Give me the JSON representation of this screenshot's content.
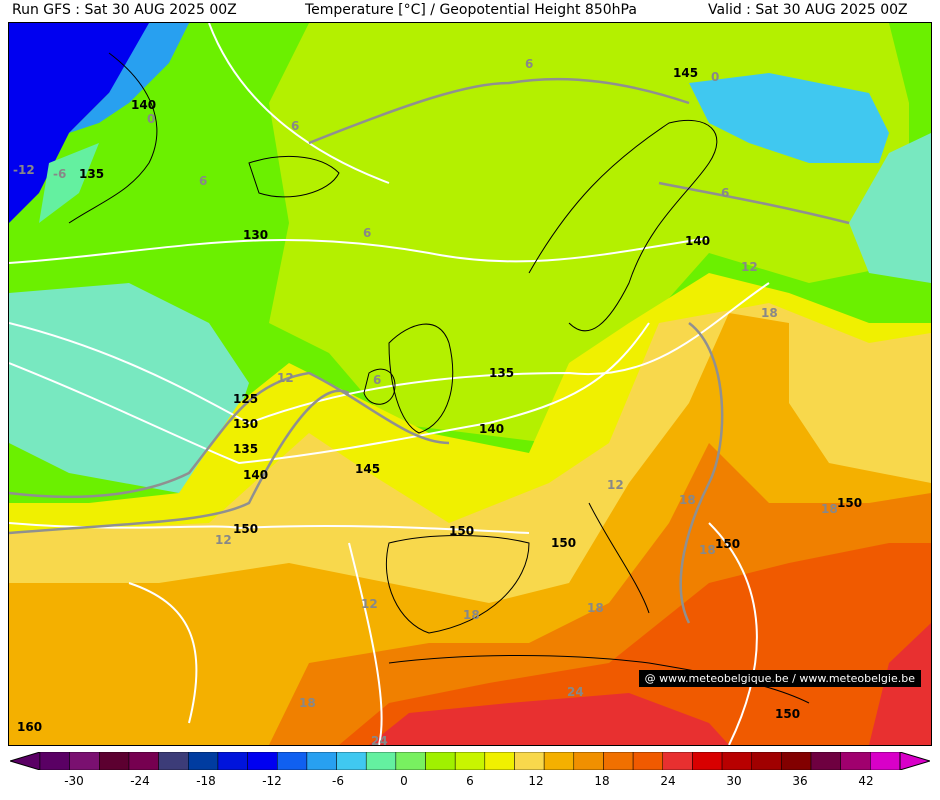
{
  "header": {
    "run": "Run GFS : Sat 30 AUG 2025 00Z",
    "title": "Temperature [°C] / Geopotential Height 850hPa",
    "valid": "Valid : Sat 30 AUG 2025 00Z"
  },
  "credit": "@ www.meteobelgique.be / www.meteobelgie.be",
  "colors": {
    "green": "#6bf000",
    "lime": "#b4f000",
    "light_green": "#8cf500",
    "yellow": "#f0f000",
    "light_orange": "#f8d84c",
    "orange": "#f4b000",
    "dark_orange": "#f08000",
    "red_orange": "#f05a00",
    "red": "#e83030",
    "blue": "#0000f0",
    "light_blue": "#28a0f0",
    "cyan": "#64f0a0",
    "mint": "#78e8c0",
    "isotherm": "#909090",
    "isohypse": "#ffffff"
  },
  "scale": {
    "colors": [
      "#5a0064",
      "#7a1070",
      "#5c0030",
      "#760050",
      "#3c3c78",
      "#003ca0",
      "#0014dc",
      "#0000f0",
      "#1060f0",
      "#28a0f0",
      "#40c8f0",
      "#64f0a0",
      "#78f060",
      "#a0f000",
      "#c8f500",
      "#f0f000",
      "#f8d84c",
      "#f4b000",
      "#f09000",
      "#f07000",
      "#f05a00",
      "#e83030",
      "#d80000",
      "#b80000",
      "#a00000",
      "#820000",
      "#6e0040",
      "#a0006e",
      "#d800c8"
    ],
    "ticks": [
      "-30",
      "-24",
      "-18",
      "-12",
      "-6",
      "0",
      "6",
      "12",
      "18",
      "24",
      "30",
      "36",
      "42"
    ]
  },
  "height_labels": [
    "140",
    "135",
    "130",
    "135",
    "145",
    "140",
    "145",
    "140",
    "125",
    "130",
    "135",
    "140",
    "150",
    "150",
    "150",
    "150",
    "150",
    "160",
    "150"
  ],
  "temp_labels": [
    "0",
    "0",
    "-12",
    "-6",
    "6",
    "6",
    "6",
    "6",
    "6",
    "6",
    "12",
    "12",
    "12",
    "12",
    "12",
    "18",
    "18",
    "18",
    "18",
    "18",
    "18",
    "24",
    "24",
    "18"
  ]
}
